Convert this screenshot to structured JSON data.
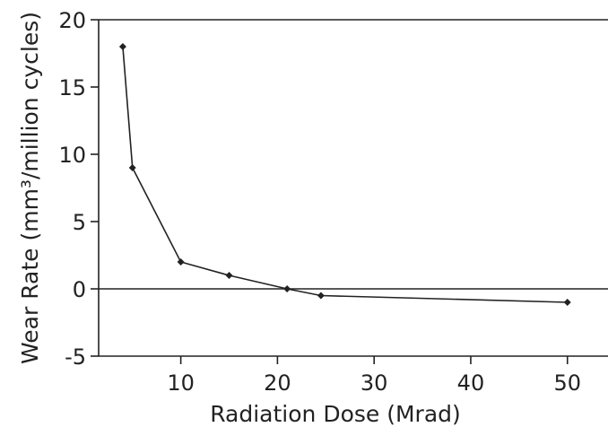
{
  "chart_data": {
    "type": "line",
    "title": "",
    "xlabel": "Radiation Dose (Mrad)",
    "ylabel": "Wear Rate (mm³/million cycles)",
    "xlim": [
      0,
      55
    ],
    "ylim": [
      -5,
      20
    ],
    "xticks": [
      10,
      20,
      30,
      40,
      50
    ],
    "yticks": [
      -5,
      0,
      5,
      10,
      15,
      20
    ],
    "grid": false,
    "zero_line": true,
    "series": [
      {
        "x": [
          4,
          5,
          10,
          15,
          21,
          24.5,
          50
        ],
        "y": [
          18,
          9,
          2,
          1,
          0,
          -0.5,
          -1
        ]
      }
    ]
  }
}
